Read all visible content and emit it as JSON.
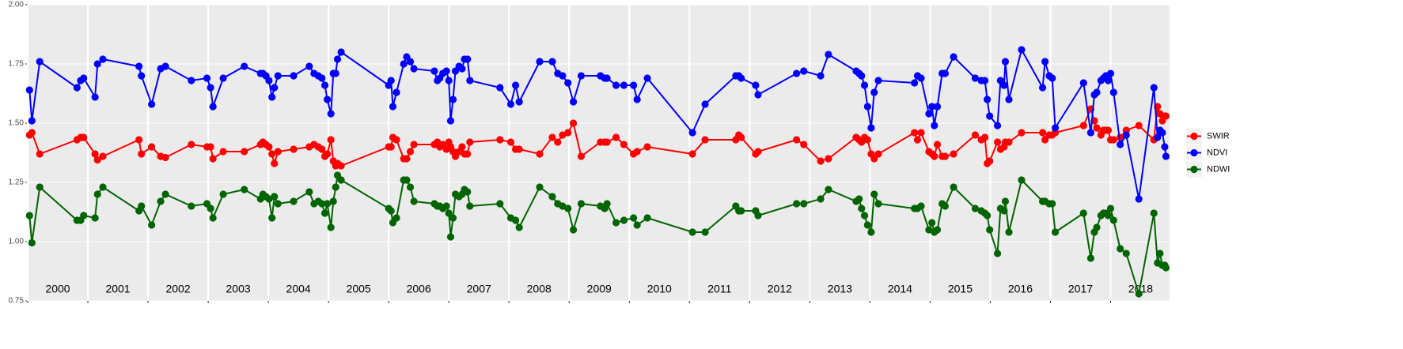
{
  "chart_data": {
    "type": "line",
    "x": [
      2000.03,
      2000.07,
      2000.2,
      2000.82,
      2000.88,
      2000.93,
      2001.12,
      2001.16,
      2001.25,
      2001.85,
      2001.89,
      2002.06,
      2002.21,
      2002.29,
      2002.72,
      2002.98,
      2003.04,
      2003.08,
      2003.25,
      2003.6,
      2003.87,
      2003.91,
      2003.96,
      2004.01,
      2004.06,
      2004.1,
      2004.16,
      2004.42,
      2004.68,
      2004.76,
      2004.83,
      2004.89,
      2004.94,
      2004.98,
      2005.04,
      2005.08,
      2005.12,
      2005.15,
      2005.21,
      2006.0,
      2006.04,
      2006.07,
      2006.13,
      2006.25,
      2006.3,
      2006.36,
      2006.42,
      2006.76,
      2006.81,
      2006.85,
      2006.9,
      2006.96,
      2007.0,
      2007.03,
      2007.07,
      2007.11,
      2007.17,
      2007.22,
      2007.26,
      2007.31,
      2007.35,
      2007.85,
      2008.03,
      2008.11,
      2008.17,
      2008.51,
      2008.72,
      2008.81,
      2008.89,
      2008.98,
      2009.07,
      2009.2,
      2009.52,
      2009.59,
      2009.63,
      2009.78,
      2009.91,
      2010.07,
      2010.13,
      2010.3,
      2011.05,
      2011.26,
      2011.77,
      2011.82,
      2011.86,
      2012.1,
      2012.14,
      2012.78,
      2012.9,
      2013.18,
      2013.31,
      2013.77,
      2013.82,
      2013.86,
      2013.91,
      2013.96,
      2014.02,
      2014.07,
      2014.14,
      2014.74,
      2014.79,
      2014.85,
      2014.98,
      2015.03,
      2015.07,
      2015.12,
      2015.2,
      2015.25,
      2015.39,
      2015.75,
      2015.85,
      2015.91,
      2015.95,
      2015.99,
      2016.12,
      2016.17,
      2016.23,
      2016.25,
      2016.31,
      2016.52,
      2016.87,
      2016.91,
      2016.98,
      2017.03,
      2017.08,
      2017.55,
      2017.67,
      2017.73,
      2017.77,
      2017.84,
      2017.88,
      2017.92,
      2017.96,
      2018.0,
      2018.05,
      2018.16,
      2018.26,
      2018.47,
      2018.72,
      2018.78,
      2018.82,
      2018.86,
      2018.9,
      2018.92
    ],
    "series": [
      {
        "name": "SWIR",
        "color": "#ff0000",
        "values": [
          1.45,
          1.46,
          1.37,
          1.43,
          1.44,
          1.44,
          1.37,
          1.345,
          1.36,
          1.43,
          1.37,
          1.4,
          1.36,
          1.355,
          1.41,
          1.4,
          1.4,
          1.35,
          1.38,
          1.38,
          1.41,
          1.42,
          1.41,
          1.4,
          1.37,
          1.33,
          1.38,
          1.39,
          1.4,
          1.41,
          1.4,
          1.39,
          1.36,
          1.37,
          1.43,
          1.34,
          1.32,
          1.33,
          1.32,
          1.4,
          1.4,
          1.44,
          1.43,
          1.35,
          1.35,
          1.38,
          1.41,
          1.41,
          1.42,
          1.4,
          1.41,
          1.39,
          1.42,
          1.4,
          1.38,
          1.36,
          1.38,
          1.4,
          1.37,
          1.37,
          1.42,
          1.43,
          1.42,
          1.39,
          1.39,
          1.37,
          1.44,
          1.42,
          1.45,
          1.46,
          1.5,
          1.36,
          1.42,
          1.42,
          1.42,
          1.44,
          1.41,
          1.37,
          1.38,
          1.4,
          1.37,
          1.43,
          1.43,
          1.45,
          1.44,
          1.37,
          1.38,
          1.43,
          1.41,
          1.34,
          1.35,
          1.44,
          1.43,
          1.42,
          1.44,
          1.43,
          1.37,
          1.35,
          1.37,
          1.46,
          1.43,
          1.46,
          1.38,
          1.37,
          1.36,
          1.41,
          1.36,
          1.36,
          1.37,
          1.45,
          1.43,
          1.44,
          1.33,
          1.34,
          1.42,
          1.39,
          1.4,
          1.42,
          1.42,
          1.46,
          1.46,
          1.43,
          1.45,
          1.45,
          1.46,
          1.49,
          1.56,
          1.51,
          1.48,
          1.45,
          1.47,
          1.47,
          1.47,
          1.43,
          1.43,
          1.44,
          1.47,
          1.49,
          1.43,
          1.57,
          1.54,
          1.51,
          1.53,
          1.53
        ]
      },
      {
        "name": "NDVI",
        "color": "#0000ff",
        "values": [
          1.64,
          1.51,
          1.76,
          1.65,
          1.68,
          1.69,
          1.61,
          1.75,
          1.77,
          1.74,
          1.7,
          1.58,
          1.73,
          1.74,
          1.68,
          1.69,
          1.65,
          1.57,
          1.69,
          1.74,
          1.71,
          1.71,
          1.7,
          1.68,
          1.61,
          1.65,
          1.7,
          1.7,
          1.74,
          1.71,
          1.7,
          1.69,
          1.66,
          1.6,
          1.54,
          1.71,
          1.71,
          1.77,
          1.8,
          1.66,
          1.68,
          1.57,
          1.63,
          1.75,
          1.78,
          1.76,
          1.73,
          1.72,
          1.68,
          1.69,
          1.71,
          1.72,
          1.68,
          1.51,
          1.6,
          1.72,
          1.74,
          1.73,
          1.77,
          1.77,
          1.68,
          1.65,
          1.58,
          1.66,
          1.59,
          1.76,
          1.76,
          1.71,
          1.7,
          1.67,
          1.59,
          1.7,
          1.7,
          1.69,
          1.69,
          1.66,
          1.66,
          1.66,
          1.6,
          1.69,
          1.46,
          1.58,
          1.7,
          1.7,
          1.69,
          1.66,
          1.62,
          1.71,
          1.72,
          1.7,
          1.79,
          1.72,
          1.71,
          1.7,
          1.66,
          1.57,
          1.48,
          1.63,
          1.68,
          1.67,
          1.7,
          1.69,
          1.54,
          1.57,
          1.49,
          1.57,
          1.71,
          1.71,
          1.78,
          1.69,
          1.68,
          1.68,
          1.6,
          1.53,
          1.49,
          1.68,
          1.66,
          1.76,
          1.6,
          1.81,
          1.65,
          1.76,
          1.7,
          1.69,
          1.48,
          1.67,
          1.46,
          1.62,
          1.63,
          1.68,
          1.69,
          1.7,
          1.68,
          1.71,
          1.63,
          1.41,
          1.45,
          1.18,
          1.65,
          1.44,
          1.47,
          1.46,
          1.4,
          1.36
        ]
      },
      {
        "name": "NDWI",
        "color": "#006400",
        "values": [
          1.11,
          0.995,
          1.23,
          1.09,
          1.09,
          1.11,
          1.1,
          1.2,
          1.23,
          1.13,
          1.15,
          1.07,
          1.17,
          1.2,
          1.15,
          1.16,
          1.14,
          1.1,
          1.2,
          1.22,
          1.18,
          1.2,
          1.19,
          1.18,
          1.1,
          1.19,
          1.16,
          1.17,
          1.21,
          1.16,
          1.17,
          1.16,
          1.12,
          1.16,
          1.06,
          1.17,
          1.23,
          1.28,
          1.26,
          1.14,
          1.13,
          1.08,
          1.1,
          1.26,
          1.26,
          1.23,
          1.17,
          1.16,
          1.15,
          1.15,
          1.14,
          1.15,
          1.12,
          1.02,
          1.1,
          1.2,
          1.19,
          1.2,
          1.22,
          1.21,
          1.15,
          1.16,
          1.1,
          1.09,
          1.06,
          1.23,
          1.19,
          1.16,
          1.15,
          1.14,
          1.05,
          1.16,
          1.15,
          1.14,
          1.16,
          1.08,
          1.09,
          1.1,
          1.07,
          1.1,
          1.04,
          1.04,
          1.15,
          1.13,
          1.13,
          1.13,
          1.11,
          1.16,
          1.16,
          1.18,
          1.22,
          1.17,
          1.18,
          1.14,
          1.11,
          1.07,
          1.04,
          1.2,
          1.16,
          1.14,
          1.14,
          1.15,
          1.05,
          1.08,
          1.04,
          1.05,
          1.16,
          1.15,
          1.23,
          1.14,
          1.13,
          1.12,
          1.11,
          1.05,
          0.95,
          1.14,
          1.13,
          1.17,
          1.04,
          1.26,
          1.17,
          1.17,
          1.16,
          1.16,
          1.04,
          1.12,
          0.93,
          1.04,
          1.06,
          1.11,
          1.12,
          1.12,
          1.11,
          1.14,
          1.09,
          0.97,
          0.95,
          0.78,
          1.12,
          0.91,
          0.95,
          0.9,
          0.9,
          0.89
        ]
      }
    ],
    "xlim": [
      2000,
      2018.98
    ],
    "xticks": [
      {
        "value": 2000,
        "label": "2000"
      },
      {
        "value": 2001,
        "label": "2001"
      },
      {
        "value": 2002,
        "label": "2002"
      },
      {
        "value": 2003,
        "label": "2003"
      },
      {
        "value": 2004,
        "label": "2004"
      },
      {
        "value": 2005,
        "label": "2005"
      },
      {
        "value": 2006,
        "label": "2006"
      },
      {
        "value": 2007,
        "label": "2007"
      },
      {
        "value": 2008,
        "label": "2008"
      },
      {
        "value": 2009,
        "label": "2009"
      },
      {
        "value": 2010,
        "label": "2010"
      },
      {
        "value": 2011,
        "label": "2011"
      },
      {
        "value": 2012,
        "label": "2012"
      },
      {
        "value": 2013,
        "label": "2013"
      },
      {
        "value": 2014,
        "label": "2014"
      },
      {
        "value": 2015,
        "label": "2015"
      },
      {
        "value": 2016,
        "label": "2016"
      },
      {
        "value": 2017,
        "label": "2017"
      },
      {
        "value": 2018,
        "label": "2018"
      }
    ],
    "ylim": [
      0.75,
      2.0
    ],
    "yticks": [
      0.75,
      {
        "value": 1.0,
        "label": "1.00"
      },
      1.25,
      {
        "value": 1.5,
        "label": "1.50"
      },
      1.75,
      {
        "value": 2.0,
        "label": "2.00"
      }
    ],
    "grid": true,
    "legend": "right"
  }
}
